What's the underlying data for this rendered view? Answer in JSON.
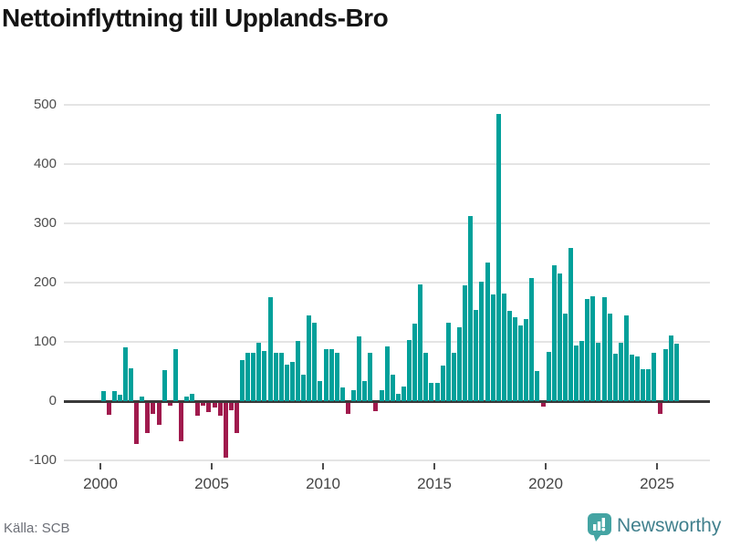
{
  "title": "Nettoinflyttning till Upplands-Bro",
  "footer": {
    "source": "Källa: SCB",
    "brand": "Newsworthy"
  },
  "chart_data": {
    "type": "bar",
    "title": "Nettoinflyttning till Upplands-Bro",
    "xlabel": "",
    "ylabel": "",
    "start_quarter": "2000 Q1",
    "end_quarter": "2025 Q4",
    "frequency": "quarterly",
    "values": [
      17,
      -20,
      17,
      10,
      90,
      56,
      -69,
      8,
      -50,
      -18,
      -37,
      52,
      -5,
      87,
      -64,
      7,
      13,
      -21,
      -5,
      -15,
      -8,
      -21,
      -93,
      -13,
      -51,
      69,
      81,
      81,
      98,
      84,
      175,
      81,
      82,
      61,
      66,
      101,
      44,
      144,
      132,
      34,
      88,
      87,
      82,
      23,
      -18,
      19,
      109,
      34,
      82,
      -14,
      19,
      92,
      45,
      13,
      24,
      103,
      131,
      197,
      81,
      31,
      31,
      60,
      132,
      81,
      125,
      195,
      313,
      154,
      202,
      234,
      180,
      485,
      181,
      153,
      142,
      128,
      138,
      208,
      51,
      -6,
      83,
      229,
      215,
      147,
      259,
      94,
      102,
      173,
      177,
      99,
      175,
      147,
      80,
      98,
      145,
      78,
      76,
      54,
      54,
      81,
      -19,
      88,
      110,
      97
    ],
    "x_tick_labels": [
      "2000",
      "2005",
      "2010",
      "2015",
      "2020",
      "2025"
    ],
    "y_tick_labels": [
      "500",
      "400",
      "300",
      "200",
      "100",
      "0",
      "-100"
    ],
    "y_ticks": [
      500,
      400,
      300,
      200,
      100,
      0,
      -100
    ],
    "ylim": [
      -100,
      500
    ],
    "grid": true,
    "legend": false,
    "colors": {
      "positive": "#00a09a",
      "negative": "#a01a4d",
      "gridline": "#e4e4e4",
      "zeroline": "#3a3a3a",
      "brand_teal": "#44a4a3",
      "brand_text": "#41808d"
    }
  }
}
